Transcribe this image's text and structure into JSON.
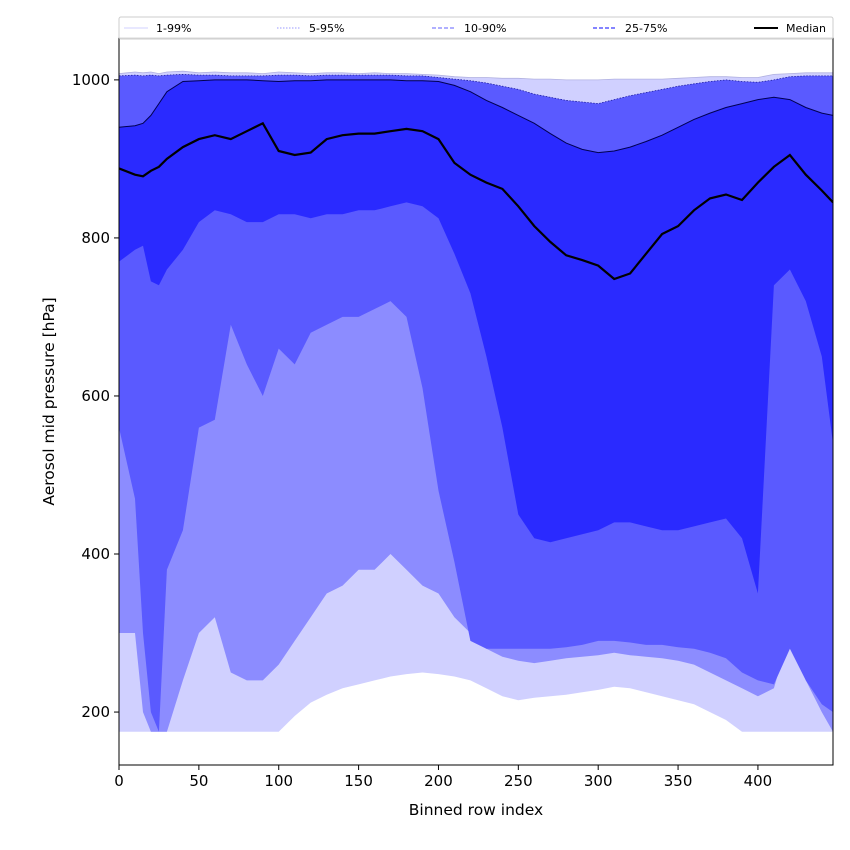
{
  "chart_data": {
    "type": "area",
    "xlabel": "Binned row index",
    "ylabel": "Aerosol mid pressure [hPa]",
    "xlim": [
      0,
      447
    ],
    "ylim": [
      133,
      1053
    ],
    "xticks": [
      0,
      50,
      100,
      150,
      200,
      250,
      300,
      350,
      400
    ],
    "yticks": [
      200,
      400,
      600,
      800,
      1000
    ],
    "grid": false,
    "legend_position": "top",
    "legend": [
      {
        "label": "1-99%",
        "style": "solid-thin",
        "color": "#d0d0ff"
      },
      {
        "label": "5-95%",
        "style": "dotted",
        "color": "#9a9aff"
      },
      {
        "label": "10-90%",
        "style": "dashed",
        "color": "#8080ff"
      },
      {
        "label": "25-75%",
        "style": "dashed",
        "color": "#3b3bff"
      },
      {
        "label": "Median",
        "style": "solid",
        "color": "#000000"
      }
    ],
    "x": [
      0,
      10,
      15,
      20,
      25,
      30,
      40,
      50,
      60,
      70,
      80,
      90,
      100,
      110,
      120,
      130,
      140,
      150,
      160,
      170,
      180,
      190,
      200,
      210,
      220,
      230,
      240,
      250,
      260,
      270,
      280,
      290,
      300,
      310,
      320,
      330,
      340,
      350,
      360,
      370,
      380,
      390,
      400,
      410,
      420,
      430,
      440,
      447
    ],
    "bands": [
      {
        "name": "1-99%",
        "color": "#d0d0ff",
        "lower": [
          175,
          175,
          175,
          175,
          175,
          175,
          175,
          175,
          175,
          175,
          175,
          175,
          175,
          195,
          212,
          222,
          230,
          235,
          240,
          245,
          248,
          250,
          248,
          245,
          240,
          230,
          220,
          215,
          218,
          220,
          222,
          225,
          228,
          232,
          230,
          225,
          220,
          215,
          210,
          200,
          190,
          175,
          175,
          175,
          175,
          175,
          175,
          175
        ],
        "upper": [
          1008,
          1010,
          1009,
          1010,
          1008,
          1010,
          1011,
          1009,
          1010,
          1009,
          1009,
          1008,
          1010,
          1009,
          1008,
          1009,
          1009,
          1008,
          1009,
          1008,
          1008,
          1007,
          1006,
          1004,
          1003,
          1003,
          1002,
          1002,
          1001,
          1001,
          1000,
          1000,
          1000,
          1001,
          1001,
          1001,
          1001,
          1002,
          1003,
          1004,
          1004,
          1003,
          1003,
          1007,
          1008,
          1009,
          1009,
          1009
        ]
      },
      {
        "name": "5-95%",
        "color": "#8c8cff",
        "lower": [
          300,
          300,
          200,
          175,
          175,
          175,
          240,
          300,
          320,
          250,
          240,
          240,
          260,
          290,
          320,
          350,
          360,
          380,
          380,
          400,
          380,
          360,
          350,
          320,
          300,
          280,
          270,
          265,
          262,
          265,
          268,
          270,
          272,
          275,
          272,
          270,
          268,
          265,
          260,
          250,
          240,
          230,
          220,
          230,
          300,
          240,
          200,
          175
        ],
        "upper": [
          1005,
          1006,
          1005,
          1006,
          1005,
          1006,
          1007,
          1006,
          1006,
          1005,
          1005,
          1005,
          1006,
          1006,
          1005,
          1006,
          1006,
          1006,
          1006,
          1006,
          1005,
          1005,
          1003,
          1001,
          999,
          996,
          992,
          988,
          982,
          978,
          974,
          972,
          970,
          975,
          980,
          984,
          988,
          992,
          995,
          998,
          1000,
          998,
          997,
          1000,
          1004,
          1005,
          1005,
          1005
        ]
      },
      {
        "name": "10-90%",
        "color": "#5a5aff",
        "lower": [
          560,
          470,
          300,
          200,
          175,
          380,
          430,
          560,
          570,
          690,
          640,
          600,
          660,
          640,
          680,
          690,
          700,
          700,
          710,
          720,
          700,
          610,
          480,
          390,
          290,
          280,
          280,
          280,
          280,
          280,
          282,
          285,
          290,
          290,
          288,
          285,
          285,
          282,
          280,
          275,
          268,
          250,
          240,
          235,
          280,
          240,
          210,
          200
        ]
      },
      {
        "name": "25-75%",
        "color": "#2a2aff",
        "lower": [
          770,
          785,
          790,
          745,
          740,
          760,
          785,
          820,
          835,
          830,
          820,
          820,
          830,
          830,
          825,
          830,
          830,
          835,
          835,
          840,
          845,
          840,
          825,
          780,
          730,
          650,
          560,
          450,
          420,
          415,
          420,
          425,
          430,
          440,
          440,
          435,
          430,
          430,
          435,
          440,
          445,
          420,
          350,
          740,
          760,
          720,
          650,
          540
        ],
        "upper": [
          940,
          942,
          945,
          955,
          970,
          985,
          998,
          999,
          1000,
          1000,
          1000,
          999,
          998,
          999,
          999,
          1000,
          1000,
          1000,
          1000,
          1000,
          999,
          999,
          998,
          993,
          985,
          974,
          965,
          955,
          945,
          932,
          920,
          912,
          908,
          910,
          915,
          922,
          930,
          940,
          950,
          958,
          965,
          970,
          975,
          978,
          975,
          965,
          958,
          955
        ]
      }
    ],
    "series": [
      {
        "name": "Median",
        "color": "#000000",
        "values": [
          888,
          880,
          878,
          885,
          890,
          900,
          915,
          925,
          930,
          925,
          935,
          945,
          910,
          905,
          908,
          925,
          930,
          932,
          932,
          935,
          938,
          935,
          925,
          895,
          880,
          870,
          862,
          840,
          815,
          795,
          778,
          772,
          765,
          748,
          755,
          780,
          805,
          815,
          835,
          850,
          855,
          848,
          870,
          890,
          905,
          880,
          860,
          845
        ]
      }
    ]
  }
}
